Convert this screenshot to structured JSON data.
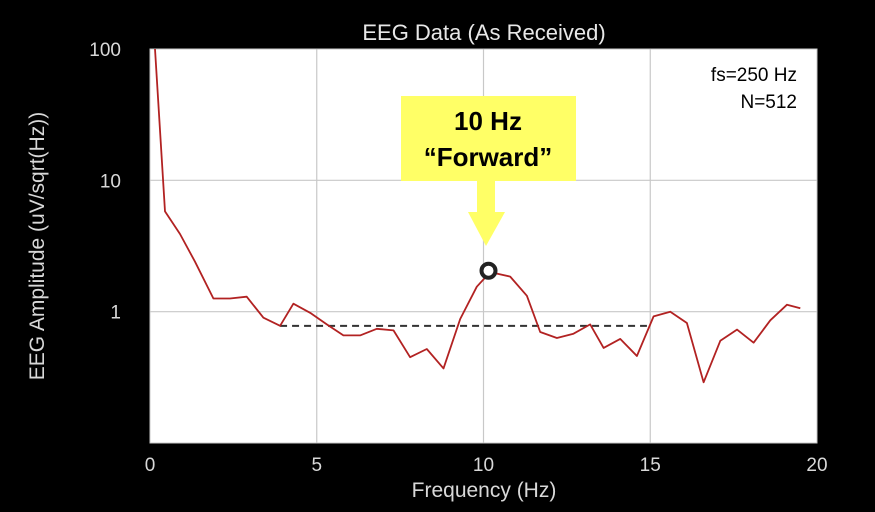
{
  "chart_data": {
    "type": "line",
    "title": "EEG Data (As Received)",
    "xlabel": "Frequency (Hz)",
    "ylabel": "EEG Amplitude (uV/sqrt(Hz))",
    "xlim": [
      0,
      20
    ],
    "ylim": [
      0.1,
      100
    ],
    "y_scale": "log",
    "x_ticks": [
      "0",
      "5",
      "10",
      "15",
      "20"
    ],
    "y_ticks": [
      "100",
      "10",
      "1"
    ],
    "y_tick_values": [
      100,
      10,
      1
    ],
    "grid": true,
    "series": [
      {
        "color": "#b22222",
        "x": [
          0.15,
          0.45,
          0.9,
          1.35,
          1.9,
          2.4,
          2.9,
          3.4,
          3.9,
          4.3,
          4.8,
          5.3,
          5.8,
          6.3,
          6.8,
          7.3,
          7.8,
          8.3,
          8.8,
          9.3,
          9.8,
          10.2,
          10.8,
          11.3,
          11.7,
          12.2,
          12.7,
          13.2,
          13.6,
          14.1,
          14.6,
          15.1,
          15.6,
          16.1,
          16.6,
          17.1,
          17.6,
          18.1,
          18.6,
          19.1,
          19.5
        ],
        "y": [
          100,
          5.8,
          3.9,
          2.4,
          1.26,
          1.26,
          1.3,
          0.9,
          0.78,
          1.15,
          0.98,
          0.8,
          0.66,
          0.66,
          0.74,
          0.72,
          0.45,
          0.52,
          0.37,
          0.88,
          1.55,
          2.0,
          1.85,
          1.32,
          0.7,
          0.63,
          0.68,
          0.8,
          0.53,
          0.62,
          0.46,
          0.92,
          1.0,
          0.82,
          0.29,
          0.6,
          0.73,
          0.58,
          0.86,
          1.13,
          1.06
        ]
      }
    ],
    "reference_line": {
      "x": [
        3.9,
        14.9
      ],
      "y": 0.78,
      "style": "dashed",
      "color": "#333333"
    },
    "highlight_point": {
      "x": 10.15,
      "y": 2.05
    },
    "annotations": {
      "info_line1": "fs=250 Hz",
      "info_line2": "N=512",
      "callout_line1": "10 Hz",
      "callout_line2": "“Forward”",
      "callout_color": "#ffff66"
    }
  }
}
